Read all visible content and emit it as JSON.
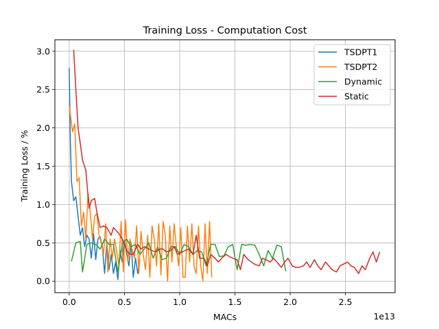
{
  "chart_data": {
    "type": "line",
    "title": "Training Loss - Computation Cost",
    "xlabel": "MACs",
    "ylabel": "Training Loss / %",
    "x_offset_text": "1e13",
    "xlim": [
      -0.13,
      2.95
    ],
    "ylim": [
      -0.15,
      3.15
    ],
    "x_ticks": [
      0.0,
      0.5,
      1.0,
      1.5,
      2.0,
      2.5
    ],
    "x_tick_labels": [
      "0.0",
      "0.5",
      "1.0",
      "1.5",
      "2.0",
      "2.5"
    ],
    "y_ticks": [
      0.0,
      0.5,
      1.0,
      1.5,
      2.0,
      2.5,
      3.0
    ],
    "y_tick_labels": [
      "0.0",
      "0.5",
      "1.0",
      "1.5",
      "2.0",
      "2.5",
      "3.0"
    ],
    "grid": true,
    "legend_position": "top-right",
    "series": [
      {
        "name": "TSDPT1",
        "color": "#1f77b4",
        "x": [
          0.0,
          0.01,
          0.02,
          0.04,
          0.06,
          0.08,
          0.1,
          0.12,
          0.14,
          0.16,
          0.18,
          0.2,
          0.22,
          0.24,
          0.26,
          0.28,
          0.3,
          0.32,
          0.34,
          0.36,
          0.38,
          0.4,
          0.42,
          0.44,
          0.46,
          0.48,
          0.5,
          0.52,
          0.54,
          0.56,
          0.58,
          0.6,
          0.62,
          0.64
        ],
        "y": [
          2.78,
          1.85,
          1.3,
          1.05,
          1.1,
          0.85,
          0.6,
          0.7,
          0.45,
          0.6,
          0.55,
          0.3,
          0.62,
          0.28,
          0.55,
          0.58,
          0.45,
          0.1,
          0.5,
          0.15,
          0.35,
          0.1,
          0.25,
          0.02,
          0.4,
          0.25,
          0.55,
          0.35,
          0.2,
          0.5,
          0.05,
          0.3,
          0.1,
          0.28
        ]
      },
      {
        "name": "TSDPT2",
        "color": "#ff7f0e",
        "x": [
          0.0,
          0.03,
          0.05,
          0.07,
          0.09,
          0.11,
          0.13,
          0.15,
          0.17,
          0.19,
          0.21,
          0.23,
          0.25,
          0.27,
          0.29,
          0.31,
          0.33,
          0.35,
          0.37,
          0.39,
          0.41,
          0.43,
          0.45,
          0.47,
          0.49,
          0.51,
          0.53,
          0.55,
          0.57,
          0.59,
          0.61,
          0.63,
          0.65,
          0.67,
          0.69,
          0.71,
          0.73,
          0.75,
          0.77,
          0.79,
          0.81,
          0.83,
          0.85,
          0.87,
          0.89,
          0.91,
          0.93,
          0.95,
          0.97,
          0.99,
          1.01,
          1.03,
          1.05,
          1.07,
          1.09,
          1.11,
          1.13,
          1.15,
          1.17,
          1.19,
          1.21,
          1.23,
          1.25,
          1.27,
          1.29
        ],
        "y": [
          2.29,
          1.95,
          2.05,
          1.3,
          1.35,
          0.72,
          0.9,
          0.55,
          1.15,
          0.9,
          0.55,
          0.85,
          0.88,
          0.6,
          0.5,
          0.35,
          0.75,
          0.12,
          0.55,
          0.3,
          0.55,
          0.38,
          0.2,
          0.78,
          0.12,
          0.8,
          0.25,
          0.55,
          0.4,
          0.3,
          0.72,
          0.1,
          0.65,
          0.35,
          0.15,
          0.6,
          0.05,
          0.72,
          0.55,
          0.2,
          0.75,
          0.08,
          0.78,
          0.6,
          0.0,
          0.72,
          0.25,
          0.75,
          0.45,
          0.2,
          0.7,
          0.05,
          0.05,
          0.72,
          0.25,
          0.75,
          0.2,
          0.1,
          0.72,
          0.2,
          0.0,
          0.75,
          0.1,
          0.78,
          0.05
        ]
      },
      {
        "name": "Dynamic",
        "color": "#2ca02c",
        "x": [
          0.02,
          0.06,
          0.1,
          0.12,
          0.16,
          0.2,
          0.24,
          0.28,
          0.32,
          0.36,
          0.4,
          0.44,
          0.48,
          0.52,
          0.56,
          0.6,
          0.64,
          0.68,
          0.72,
          0.76,
          0.8,
          0.84,
          0.88,
          0.92,
          0.96,
          1.0,
          1.04,
          1.08,
          1.12,
          1.16,
          1.2,
          1.24,
          1.28,
          1.32,
          1.36,
          1.4,
          1.44,
          1.48,
          1.52,
          1.56,
          1.6,
          1.64,
          1.68,
          1.72,
          1.76,
          1.8,
          1.84,
          1.88,
          1.92,
          1.96
        ],
        "y": [
          0.26,
          0.5,
          0.52,
          0.12,
          0.48,
          0.5,
          0.48,
          0.42,
          0.55,
          0.48,
          0.48,
          0.12,
          0.48,
          0.55,
          0.45,
          0.48,
          0.35,
          0.42,
          0.5,
          0.3,
          0.45,
          0.28,
          0.3,
          0.45,
          0.45,
          0.35,
          0.48,
          0.45,
          0.35,
          0.4,
          0.38,
          0.2,
          0.48,
          0.48,
          0.32,
          0.33,
          0.45,
          0.48,
          0.15,
          0.48,
          0.47,
          0.48,
          0.47,
          0.35,
          0.2,
          0.4,
          0.3,
          0.47,
          0.45,
          0.13
        ]
      },
      {
        "name": "Static",
        "color": "#d62728",
        "x": [
          0.04,
          0.06,
          0.08,
          0.1,
          0.12,
          0.15,
          0.18,
          0.2,
          0.23,
          0.25,
          0.28,
          0.31,
          0.34,
          0.38,
          0.4,
          0.45,
          0.48,
          0.52,
          0.55,
          0.58,
          0.62,
          0.65,
          0.68,
          0.72,
          0.75,
          0.78,
          0.82,
          0.85,
          0.88,
          0.92,
          0.95,
          0.98,
          1.02,
          1.05,
          1.08,
          1.12,
          1.15,
          1.18,
          1.22,
          1.25,
          1.28,
          1.32,
          1.35,
          1.38,
          1.42,
          1.45,
          1.48,
          1.52,
          1.55,
          1.58,
          1.62,
          1.65,
          1.68,
          1.72,
          1.75,
          1.78,
          1.82,
          1.85,
          1.88,
          1.92,
          1.95,
          1.98,
          2.02,
          2.05,
          2.08,
          2.12,
          2.15,
          2.18,
          2.22,
          2.25,
          2.28,
          2.32,
          2.35,
          2.38,
          2.42,
          2.45,
          2.48,
          2.52,
          2.55,
          2.58,
          2.62,
          2.65,
          2.68,
          2.72,
          2.75,
          2.78,
          2.81
        ],
        "y": [
          3.02,
          2.5,
          2.0,
          1.8,
          1.58,
          1.45,
          0.95,
          1.05,
          1.08,
          0.9,
          0.7,
          0.72,
          0.7,
          0.6,
          0.7,
          0.62,
          0.55,
          0.4,
          0.35,
          0.35,
          0.48,
          0.42,
          0.45,
          0.42,
          0.4,
          0.38,
          0.42,
          0.42,
          0.38,
          0.4,
          0.45,
          0.35,
          0.38,
          0.4,
          0.42,
          0.35,
          0.6,
          0.3,
          0.3,
          0.2,
          0.35,
          0.3,
          0.25,
          0.3,
          0.35,
          0.32,
          0.3,
          0.28,
          0.15,
          0.35,
          0.28,
          0.25,
          0.22,
          0.2,
          0.3,
          0.28,
          0.25,
          0.3,
          0.25,
          0.18,
          0.25,
          0.3,
          0.2,
          0.18,
          0.18,
          0.2,
          0.25,
          0.18,
          0.28,
          0.2,
          0.15,
          0.25,
          0.2,
          0.15,
          0.12,
          0.2,
          0.22,
          0.25,
          0.2,
          0.18,
          0.1,
          0.2,
          0.15,
          0.3,
          0.38,
          0.25,
          0.38
        ]
      }
    ]
  }
}
